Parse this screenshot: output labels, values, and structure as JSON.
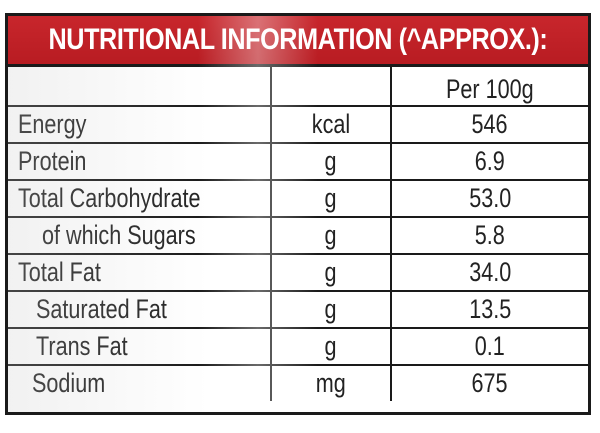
{
  "title": "NUTRITIONAL INFORMATION (^APPROX.):",
  "columns": {
    "nutrient": "",
    "unit": "",
    "value": "Per 100g"
  },
  "rows": [
    {
      "nutrient": "Energy",
      "unit": "kcal",
      "value": "546"
    },
    {
      "nutrient": "Protein",
      "unit": "g",
      "value": "6.9"
    },
    {
      "nutrient": "Total Carbohydrate",
      "unit": "g",
      "value": "53.0"
    },
    {
      "nutrient": "of which Sugars",
      "unit": "g",
      "value": "5.8"
    },
    {
      "nutrient": "Total Fat",
      "unit": "g",
      "value": "34.0"
    },
    {
      "nutrient": "Saturated Fat",
      "unit": "g",
      "value": "13.5"
    },
    {
      "nutrient": "Trans Fat",
      "unit": "g",
      "value": "0.1"
    },
    {
      "nutrient": "Sodium",
      "unit": "mg",
      "value": "675"
    }
  ],
  "colors": {
    "header_bg": "#c8262c",
    "border": "#1a1a1a"
  }
}
